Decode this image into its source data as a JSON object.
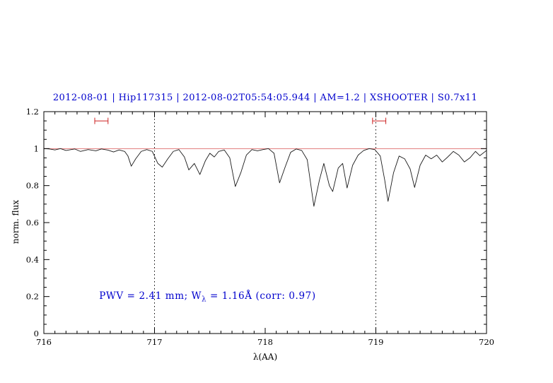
{
  "figure": {
    "title": "2012-08-01 | Hip117315 | 2012-08-02T05:54:05.944 | AM=1.2 | XSHOOTER | S0.7x11",
    "title_color": "#0000cd",
    "background": "#ffffff"
  },
  "chart_data": {
    "type": "line",
    "title": "2012-08-01 | Hip117315 | 2012-08-02T05:54:05.944 | AM=1.2 | XSHOOTER | S0.7x11",
    "xlabel": "λ(AA)",
    "ylabel": "norm. flux",
    "xlim": [
      716,
      720
    ],
    "ylim": [
      0,
      1.2
    ],
    "xtick_values": [
      716,
      717,
      718,
      719,
      720
    ],
    "xtick_labels": [
      "716",
      "717",
      "718",
      "719",
      "720"
    ],
    "x_minor_step": 0.1,
    "ytick_values": [
      0,
      0.2,
      0.4,
      0.6,
      0.8,
      1,
      1.2
    ],
    "ytick_labels": [
      "0",
      "0.2",
      "0.4",
      "0.6",
      "0.8",
      "1",
      "1.2"
    ],
    "y_minor_step": 0.05,
    "grid": false,
    "legend": "none",
    "reference_hline": {
      "y": 1.0,
      "color": "#e07878"
    },
    "dotted_vlines": {
      "x": [
        717,
        719
      ],
      "color": "#000000"
    },
    "range_markers": [
      {
        "x1": 716.46,
        "x2": 716.58,
        "y": 1.15,
        "color": "#cc2222"
      },
      {
        "x1": 718.97,
        "x2": 719.09,
        "y": 1.15,
        "color": "#cc2222"
      }
    ],
    "annotation": {
      "pre": "PWV = 2.41 mm; W",
      "sub": "λ",
      "post": " = 1.16Å (corr: 0.97)",
      "x": 716.5,
      "y": 0.2,
      "color": "#0000cd"
    },
    "series": [
      {
        "name": "spectrum",
        "color": "#1a1a1a",
        "x": [
          716.0,
          716.05,
          716.1,
          716.15,
          716.2,
          716.28,
          716.33,
          716.4,
          716.47,
          716.52,
          716.58,
          716.63,
          716.68,
          716.73,
          716.76,
          716.79,
          716.83,
          716.88,
          716.93,
          716.98,
          717.03,
          717.07,
          717.12,
          717.17,
          717.22,
          717.27,
          717.31,
          717.36,
          717.41,
          717.46,
          717.5,
          717.54,
          717.58,
          717.63,
          717.68,
          717.73,
          717.78,
          717.83,
          717.88,
          717.93,
          717.98,
          718.03,
          718.08,
          718.13,
          718.18,
          718.23,
          718.28,
          718.33,
          718.38,
          718.44,
          718.49,
          718.53,
          718.58,
          718.61,
          718.66,
          718.7,
          718.74,
          718.79,
          718.84,
          718.89,
          718.94,
          718.99,
          719.04,
          719.08,
          719.11,
          719.16,
          719.21,
          719.26,
          719.31,
          719.35,
          719.4,
          719.45,
          719.5,
          719.55,
          719.6,
          719.65,
          719.7,
          719.75,
          719.8,
          719.85,
          719.9,
          719.94,
          720.0
        ],
        "y": [
          1.0,
          0.998,
          0.993,
          1.0,
          0.99,
          0.998,
          0.985,
          0.995,
          0.988,
          0.998,
          0.992,
          0.982,
          0.993,
          0.985,
          0.96,
          0.905,
          0.945,
          0.985,
          0.995,
          0.985,
          0.92,
          0.9,
          0.945,
          0.985,
          0.995,
          0.955,
          0.885,
          0.92,
          0.86,
          0.935,
          0.975,
          0.955,
          0.985,
          0.993,
          0.95,
          0.795,
          0.87,
          0.965,
          0.995,
          0.988,
          0.995,
          1.0,
          0.975,
          0.815,
          0.9,
          0.98,
          0.998,
          0.99,
          0.94,
          0.688,
          0.83,
          0.92,
          0.8,
          0.768,
          0.895,
          0.92,
          0.787,
          0.91,
          0.965,
          0.99,
          1.0,
          0.995,
          0.96,
          0.83,
          0.715,
          0.87,
          0.96,
          0.945,
          0.89,
          0.79,
          0.91,
          0.965,
          0.945,
          0.965,
          0.928,
          0.955,
          0.985,
          0.965,
          0.928,
          0.95,
          0.985,
          0.962,
          0.99
        ]
      }
    ]
  }
}
